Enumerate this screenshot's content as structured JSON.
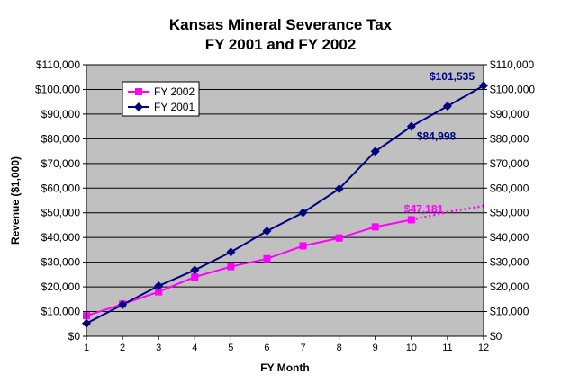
{
  "chart_data": {
    "type": "line",
    "title": "Kansas Mineral Severance Tax",
    "subtitle": "FY 2001 and FY 2002",
    "xlabel": "FY Month",
    "ylabel": "Revenue ($1,000)",
    "x": [
      1,
      2,
      3,
      4,
      5,
      6,
      7,
      8,
      9,
      10,
      11,
      12
    ],
    "ylim": [
      0,
      110000
    ],
    "y_ticks": [
      "$0",
      "$10,000",
      "$20,000",
      "$30,000",
      "$40,000",
      "$50,000",
      "$60,000",
      "$70,000",
      "$80,000",
      "$90,000",
      "$100,000",
      "$110,000"
    ],
    "x_ticks": [
      "1",
      "2",
      "3",
      "4",
      "5",
      "6",
      "7",
      "8",
      "9",
      "10",
      "11",
      "12"
    ],
    "grid": true,
    "plot_background": "#c0c0c0",
    "legend_position": "top-left",
    "series": [
      {
        "name": "FY 2002",
        "color": "#ff00ff",
        "marker": "square",
        "x": [
          1,
          2,
          3,
          4,
          5,
          6,
          7,
          8,
          9,
          10
        ],
        "values": [
          8300,
          13000,
          18000,
          24000,
          28200,
          31400,
          36600,
          39800,
          44300,
          47181
        ]
      },
      {
        "name": "FY 2001",
        "color": "#000080",
        "marker": "diamond",
        "x": [
          1,
          2,
          3,
          4,
          5,
          6,
          7,
          8,
          9,
          10,
          11,
          12
        ],
        "values": [
          5200,
          12800,
          20400,
          26800,
          34100,
          42600,
          50100,
          59700,
          74900,
          84998,
          93200,
          101535
        ]
      }
    ],
    "projection": {
      "series": "FY 2002",
      "style": "dotted",
      "x": [
        10,
        11,
        12
      ],
      "values": [
        47181,
        50300,
        52800
      ]
    },
    "annotations": [
      {
        "text": "$101,535",
        "series": "FY 2001",
        "x": 12,
        "y": 101535,
        "color": "#000080"
      },
      {
        "text": "$84,998",
        "series": "FY 2001",
        "x": 10,
        "y": 84998,
        "color": "#000080"
      },
      {
        "text": "$47,181",
        "series": "FY 2002",
        "x": 10,
        "y": 47181,
        "color": "#ff00ff"
      }
    ]
  }
}
